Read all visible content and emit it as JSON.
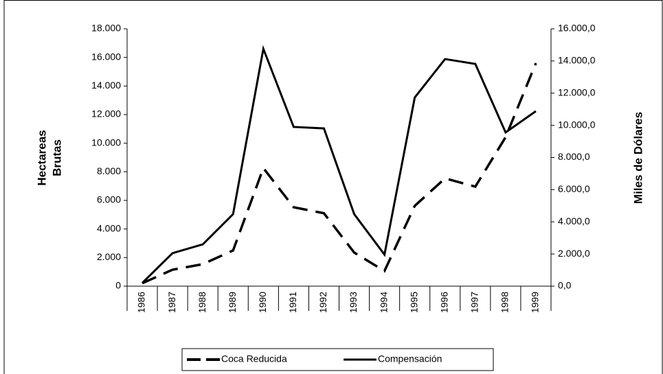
{
  "chart_data": {
    "type": "line",
    "ylabel": [
      "Hectareas",
      "Brutas"
    ],
    "y2label": "Miles de Dólares",
    "categories": [
      "1986",
      "1987",
      "1988",
      "1989",
      "1990",
      "1991",
      "1992",
      "1993",
      "1994",
      "1995",
      "1996",
      "1997",
      "1998",
      "1999"
    ],
    "series": [
      {
        "name": "Coca Reducida",
        "color": "#000000",
        "dash": true,
        "axis": "y",
        "values": [
          200,
          1150,
          1540,
          2500,
          8260,
          5520,
          5100,
          2350,
          1060,
          5620,
          7540,
          6960,
          10420,
          15600
        ]
      },
      {
        "name": "Compensación",
        "color": "#000000",
        "dash": false,
        "axis": "y2",
        "values": [
          200,
          2050,
          2600,
          4480,
          14760,
          9900,
          9810,
          4480,
          1960,
          11730,
          14120,
          13820,
          9560,
          10880
        ]
      }
    ],
    "ylim": [
      0,
      18000
    ],
    "yticks": [
      0,
      {
        "value": 2000,
        "label": "2.000"
      },
      {
        "value": 4000,
        "label": "4.000"
      },
      {
        "value": 6000,
        "label": "6.000"
      },
      {
        "value": 8000,
        "label": "8.000"
      },
      {
        "value": 10000,
        "label": "10.000"
      },
      {
        "value": 12000,
        "label": "12.000"
      },
      {
        "value": 14000,
        "label": "14.000"
      },
      {
        "value": 16000,
        "label": "16.000"
      },
      {
        "value": 18000,
        "label": "18.000"
      }
    ],
    "y2lim": [
      0,
      16000
    ],
    "y2ticks": [
      {
        "value": 0,
        "label": "0,0"
      },
      {
        "value": 2000,
        "label": "2.000,0"
      },
      {
        "value": 4000,
        "label": "4.000,0"
      },
      {
        "value": 6000,
        "label": "6.000,0"
      },
      {
        "value": 8000,
        "label": "8.000,0"
      },
      {
        "value": 10000,
        "label": "10.000,0"
      },
      {
        "value": 12000,
        "label": "12.000,0"
      },
      {
        "value": 14000,
        "label": "14.000,0"
      },
      {
        "value": 16000,
        "label": "16.000,0"
      }
    ],
    "grid": false,
    "legend": "bottom"
  }
}
